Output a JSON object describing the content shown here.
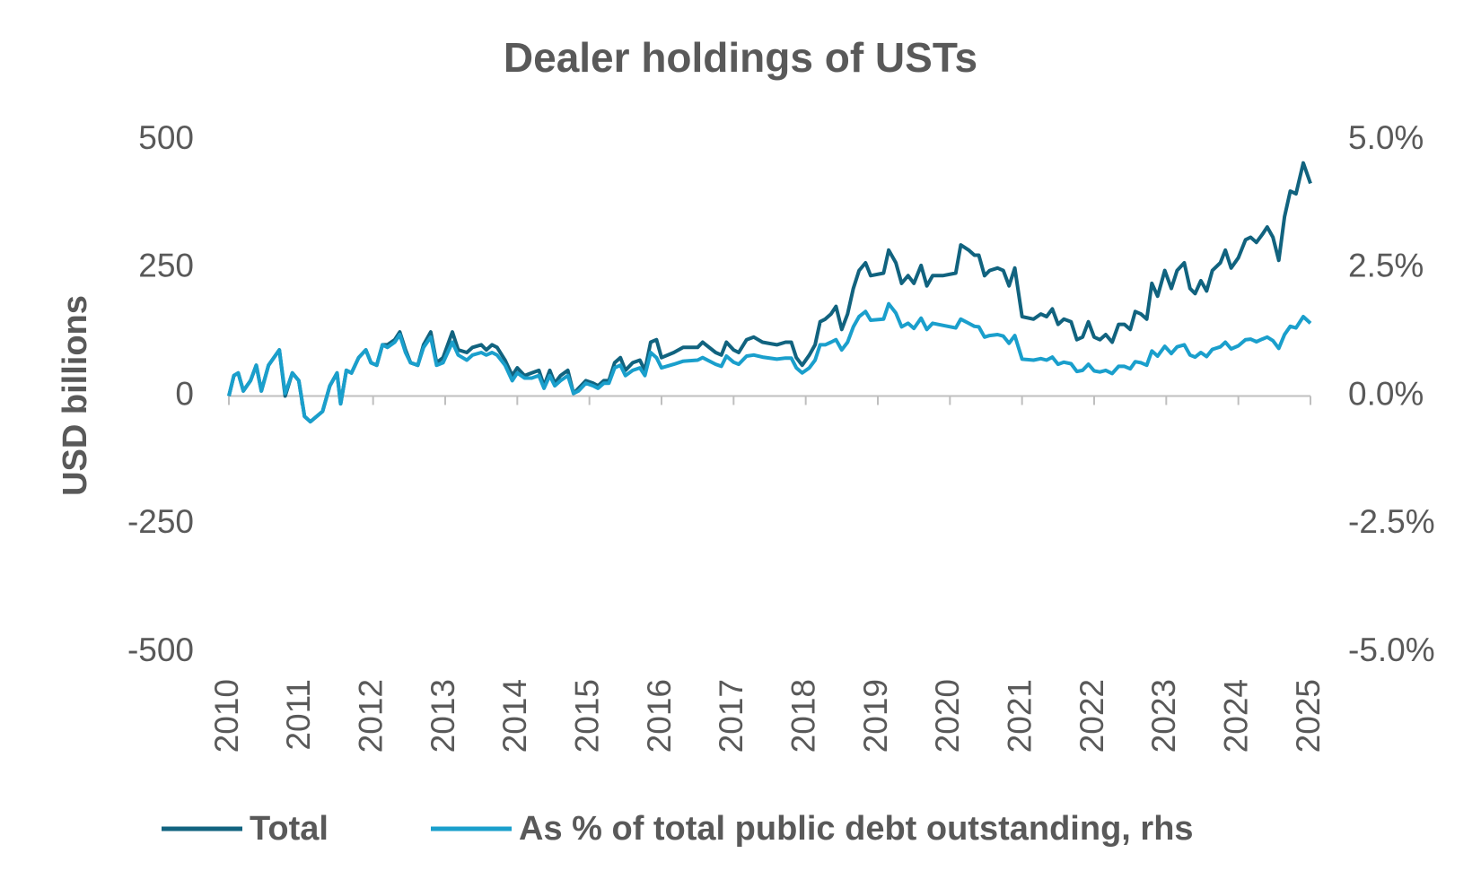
{
  "chart_data": {
    "type": "line",
    "title": "Dealer holdings of USTs",
    "y_label": "USD billions",
    "x": [
      2010.0,
      2010.07,
      2010.13,
      2010.2,
      2010.3,
      2010.38,
      2010.45,
      2010.55,
      2010.7,
      2010.78,
      2010.88,
      2010.97,
      2011.05,
      2011.13,
      2011.3,
      2011.4,
      2011.5,
      2011.55,
      2011.63,
      2011.7,
      2011.8,
      2011.9,
      2011.97,
      2012.05,
      2012.13,
      2012.2,
      2012.3,
      2012.37,
      2012.45,
      2012.52,
      2012.62,
      2012.7,
      2012.8,
      2012.88,
      2012.97,
      2013.1,
      2013.18,
      2013.3,
      2013.38,
      2013.5,
      2013.57,
      2013.65,
      2013.72,
      2013.83,
      2013.93,
      2014.0,
      2014.1,
      2014.2,
      2014.3,
      2014.37,
      2014.45,
      2014.52,
      2014.6,
      2014.7,
      2014.78,
      2014.85,
      2014.95,
      2015.05,
      2015.12,
      2015.2,
      2015.27,
      2015.35,
      2015.43,
      2015.5,
      2015.6,
      2015.7,
      2015.77,
      2015.85,
      2015.93,
      2016.0,
      2016.17,
      2016.3,
      2016.5,
      2016.57,
      2016.75,
      2016.83,
      2016.9,
      2017.0,
      2017.07,
      2017.18,
      2017.28,
      2017.4,
      2017.6,
      2017.72,
      2017.8,
      2017.87,
      2017.95,
      2018.05,
      2018.13,
      2018.2,
      2018.27,
      2018.35,
      2018.42,
      2018.5,
      2018.58,
      2018.66,
      2018.74,
      2018.83,
      2018.9,
      2019.08,
      2019.15,
      2019.25,
      2019.33,
      2019.42,
      2019.5,
      2019.6,
      2019.68,
      2019.76,
      2019.9,
      2020.08,
      2020.15,
      2020.26,
      2020.34,
      2020.4,
      2020.48,
      2020.55,
      2020.66,
      2020.74,
      2020.82,
      2020.9,
      2021.0,
      2021.16,
      2021.26,
      2021.34,
      2021.42,
      2021.5,
      2021.58,
      2021.68,
      2021.76,
      2021.84,
      2021.92,
      2022.0,
      2022.08,
      2022.16,
      2022.25,
      2022.34,
      2022.42,
      2022.5,
      2022.57,
      2022.65,
      2022.73,
      2022.8,
      2022.88,
      2022.98,
      2023.07,
      2023.15,
      2023.25,
      2023.33,
      2023.4,
      2023.48,
      2023.56,
      2023.64,
      2023.75,
      2023.82,
      2023.9,
      2024.0,
      2024.1,
      2024.17,
      2024.25,
      2024.33,
      2024.4,
      2024.48,
      2024.56,
      2024.64,
      2024.72,
      2024.8,
      2024.9,
      2025.0
    ],
    "series": [
      {
        "name": "Total",
        "color": "#11637f",
        "values": [
          0,
          40,
          45,
          10,
          30,
          60,
          10,
          60,
          90,
          0,
          45,
          30,
          -40,
          -50,
          -30,
          20,
          45,
          -15,
          50,
          45,
          75,
          90,
          65,
          60,
          100,
          100,
          110,
          125,
          90,
          65,
          60,
          100,
          125,
          65,
          75,
          125,
          90,
          85,
          95,
          100,
          90,
          100,
          95,
          70,
          40,
          55,
          40,
          45,
          50,
          20,
          50,
          25,
          40,
          50,
          5,
          15,
          30,
          25,
          20,
          30,
          30,
          65,
          75,
          50,
          65,
          70,
          50,
          105,
          110,
          75,
          85,
          95,
          95,
          105,
          85,
          80,
          105,
          90,
          85,
          110,
          115,
          105,
          100,
          105,
          105,
          75,
          60,
          80,
          100,
          145,
          150,
          160,
          175,
          130,
          160,
          210,
          245,
          260,
          235,
          240,
          285,
          260,
          220,
          235,
          220,
          255,
          215,
          235,
          235,
          240,
          295,
          285,
          275,
          275,
          235,
          245,
          250,
          245,
          215,
          250,
          155,
          150,
          160,
          155,
          170,
          140,
          150,
          145,
          110,
          115,
          145,
          115,
          110,
          120,
          105,
          140,
          140,
          130,
          165,
          160,
          150,
          220,
          195,
          245,
          210,
          245,
          260,
          210,
          200,
          225,
          205,
          245,
          260,
          285,
          250,
          270,
          305,
          310,
          300,
          315,
          330,
          310,
          265,
          350,
          400,
          395,
          455,
          415
        ]
      },
      {
        "name": "As % of total public debt outstanding, rhs",
        "color": "#1a9fcc",
        "axis": "y2",
        "values": [
          0,
          0.4,
          0.45,
          0.1,
          0.3,
          0.6,
          0.1,
          0.6,
          0.9,
          0.05,
          0.45,
          0.3,
          -0.4,
          -0.5,
          -0.3,
          0.2,
          0.45,
          -0.15,
          0.5,
          0.45,
          0.75,
          0.9,
          0.65,
          0.6,
          1.0,
          0.95,
          1.05,
          1.2,
          0.85,
          0.65,
          0.6,
          0.95,
          1.15,
          0.6,
          0.65,
          1.05,
          0.8,
          0.7,
          0.8,
          0.85,
          0.8,
          0.85,
          0.8,
          0.6,
          0.3,
          0.45,
          0.35,
          0.35,
          0.4,
          0.15,
          0.4,
          0.2,
          0.3,
          0.4,
          0.05,
          0.1,
          0.25,
          0.2,
          0.15,
          0.25,
          0.25,
          0.55,
          0.6,
          0.4,
          0.5,
          0.55,
          0.4,
          0.85,
          0.75,
          0.55,
          0.62,
          0.68,
          0.7,
          0.75,
          0.62,
          0.58,
          0.78,
          0.66,
          0.62,
          0.78,
          0.8,
          0.76,
          0.72,
          0.74,
          0.74,
          0.55,
          0.45,
          0.55,
          0.7,
          1.0,
          1.0,
          1.05,
          1.1,
          0.9,
          1.05,
          1.35,
          1.55,
          1.65,
          1.48,
          1.5,
          1.8,
          1.62,
          1.35,
          1.42,
          1.32,
          1.52,
          1.3,
          1.42,
          1.38,
          1.33,
          1.5,
          1.42,
          1.36,
          1.35,
          1.15,
          1.18,
          1.2,
          1.17,
          1.03,
          1.18,
          0.72,
          0.7,
          0.73,
          0.7,
          0.76,
          0.62,
          0.66,
          0.63,
          0.48,
          0.5,
          0.62,
          0.49,
          0.47,
          0.5,
          0.44,
          0.58,
          0.58,
          0.53,
          0.67,
          0.65,
          0.6,
          0.88,
          0.78,
          0.97,
          0.83,
          0.96,
          1.0,
          0.8,
          0.76,
          0.85,
          0.77,
          0.91,
          0.96,
          1.05,
          0.92,
          0.98,
          1.1,
          1.11,
          1.06,
          1.11,
          1.15,
          1.08,
          0.93,
          1.2,
          1.36,
          1.33,
          1.55,
          1.42
        ]
      }
    ],
    "xlim": [
      2010,
      2025
    ],
    "xticks": [
      2010,
      2011,
      2012,
      2013,
      2014,
      2015,
      2016,
      2017,
      2018,
      2019,
      2020,
      2021,
      2022,
      2023,
      2024,
      2025
    ],
    "ylim": [
      -500,
      500
    ],
    "yticks": [
      -500,
      -250,
      0,
      250,
      500
    ],
    "y2lim": [
      -5,
      5
    ],
    "y2ticks": [
      {
        "value": -5,
        "label": "-5.0%"
      },
      {
        "value": -2.5,
        "label": "-2.5%"
      },
      {
        "value": 0,
        "label": "0.0%"
      },
      {
        "value": 2.5,
        "label": "2.5%"
      },
      {
        "value": 5,
        "label": "5.0%"
      }
    ],
    "grid": false,
    "legend": "bottom"
  }
}
